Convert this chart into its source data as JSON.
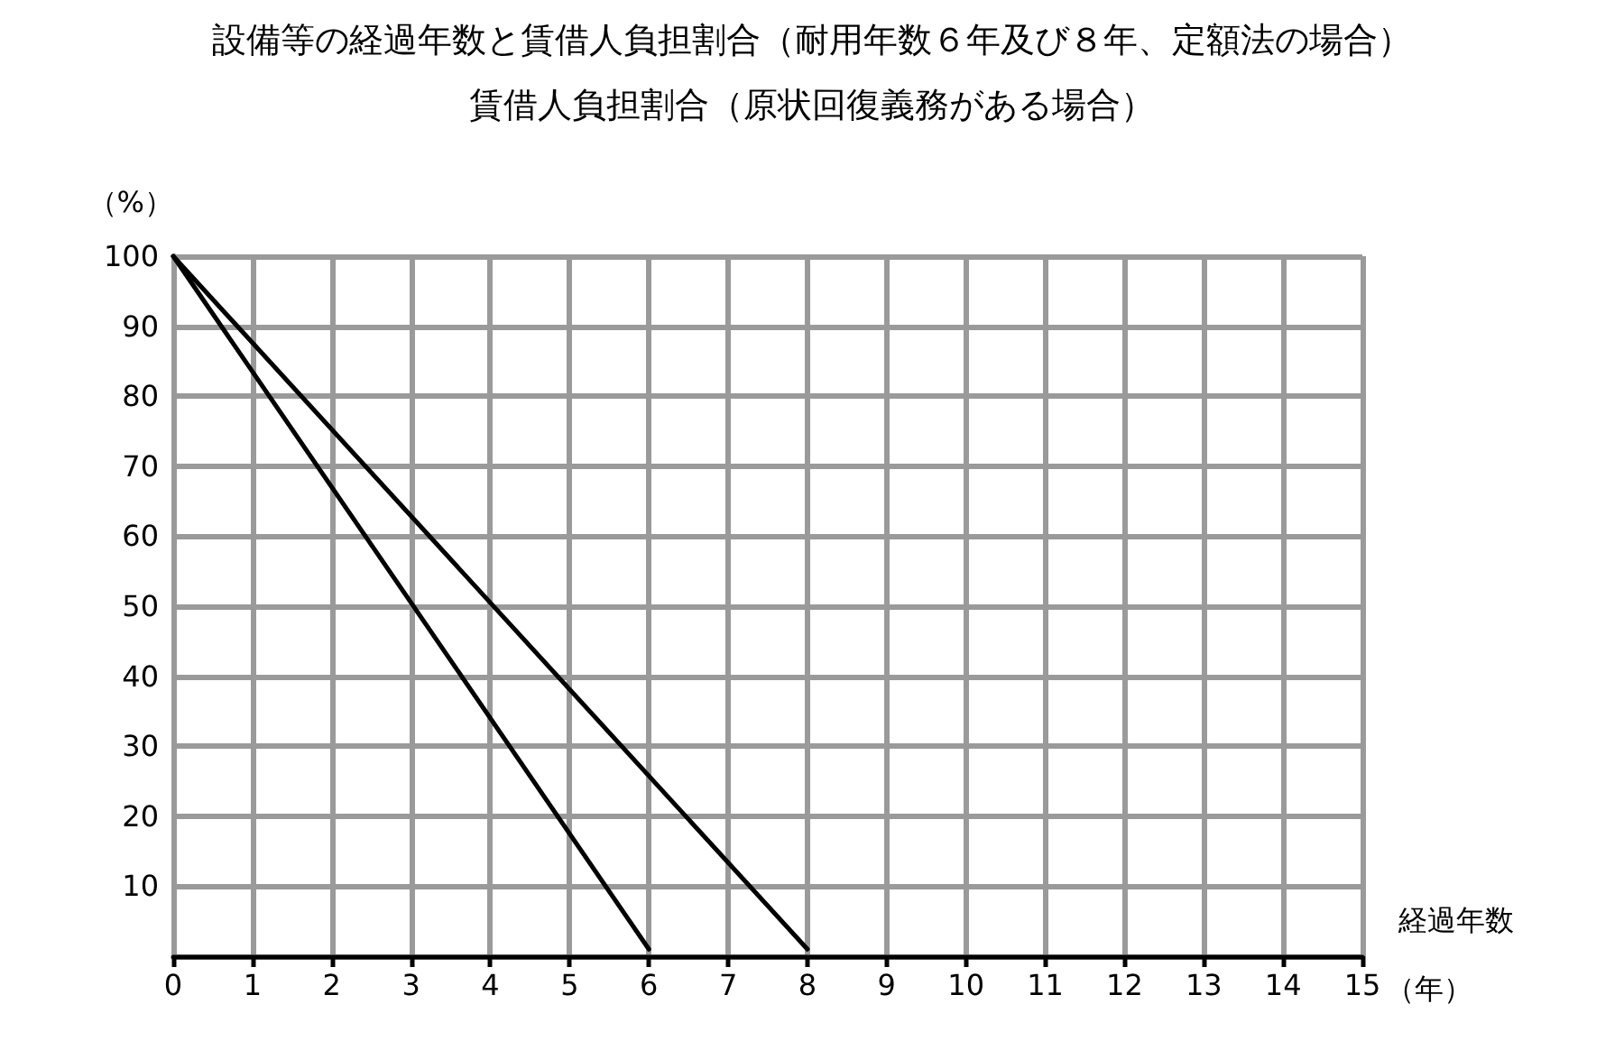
{
  "chart_data": {
    "type": "line",
    "title": "設備等の経過年数と賃借人負担割合（耐用年数６年及び８年、定額法の場合）",
    "subtitle": "賃借人負担割合（原状回復義務がある場合）",
    "xlabel": "経過年数",
    "ylabel": "（%）",
    "annotations": [
      "（年）"
    ],
    "series": [
      {
        "color": "#000000",
        "x": [
          0,
          6
        ],
        "values": [
          100,
          1
        ]
      },
      {
        "color": "#000000",
        "x": [
          0,
          8
        ],
        "values": [
          100,
          1
        ]
      }
    ],
    "xlim": [
      0,
      15
    ],
    "xticks": [
      0,
      1,
      2,
      3,
      4,
      5,
      6,
      7,
      8,
      9,
      10,
      11,
      12,
      13,
      14,
      15
    ],
    "ylim": [
      0,
      100
    ],
    "yticks": [
      {
        "value": 0,
        "label": null
      },
      10,
      20,
      30,
      40,
      50,
      60,
      70,
      80,
      90,
      100
    ],
    "grid": true,
    "marker": "none",
    "line_style": "solid"
  }
}
